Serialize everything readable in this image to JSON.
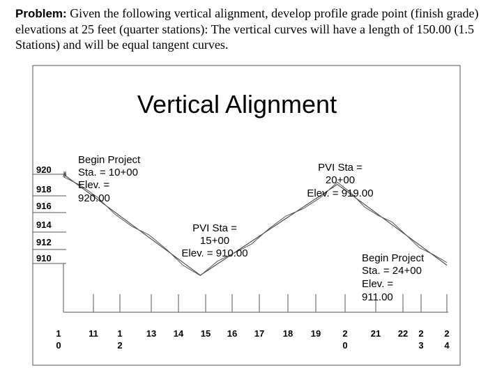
{
  "problem": {
    "lead": "Problem:",
    "text": "Given the following vertical alignment, develop profile grade point (finish grade) elevations at 25 feet (quarter stations): The vertical curves will have a length of 150.00 (1.5 Stations) and will be equal tangent curves."
  },
  "figure": {
    "title": "Vertical Alignment",
    "callouts": {
      "begin_project": [
        "Begin Project",
        "Sta. = 10+00",
        "Elev. =",
        "920.00"
      ],
      "pvi_15": [
        "PVI Sta =",
        "15+00",
        "Elev. = 910.00"
      ],
      "pvi_20": [
        "PVI Sta =",
        "20+00",
        "Elev. = 919.00"
      ],
      "end_project": [
        "Begin Project",
        "Sta. = 24+00",
        "Elev. =",
        "911.00"
      ]
    }
  },
  "chart_data": {
    "type": "line",
    "title": "Vertical Alignment",
    "y_tick_labels": [
      "920",
      "918",
      "916",
      "914",
      "912",
      "910"
    ],
    "x_tick_labels": [
      [
        "1",
        "0"
      ],
      [
        "11"
      ],
      [
        "1",
        "2"
      ],
      [
        "13"
      ],
      [
        "14"
      ],
      [
        "15"
      ],
      [
        "16"
      ],
      [
        "17"
      ],
      [
        "18"
      ],
      [
        "19"
      ],
      [
        "2",
        "0"
      ],
      [
        "21"
      ],
      [
        "22"
      ],
      [
        "2",
        "3"
      ],
      [
        "2",
        "4"
      ]
    ],
    "series": [
      {
        "name": "",
        "x": [
          10,
          15,
          20,
          24
        ],
        "y": [
          920,
          910,
          919,
          911
        ]
      }
    ],
    "points": [
      {
        "label": "Begin Project",
        "station": "10+00",
        "elevation": 920.0
      },
      {
        "label": "PVI",
        "station": "15+00",
        "elevation": 910.0
      },
      {
        "label": "PVI",
        "station": "20+00",
        "elevation": 919.0
      },
      {
        "label": "Begin Project",
        "station": "24+00",
        "elevation": 911.0
      }
    ],
    "grid": false
  }
}
